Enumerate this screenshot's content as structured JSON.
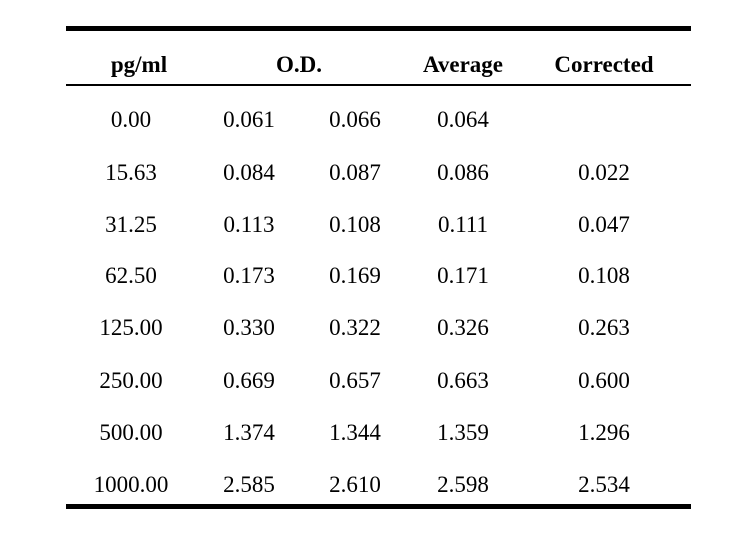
{
  "table": {
    "headers": {
      "pg_ml": "pg/ml",
      "od": "O.D.",
      "average": "Average",
      "corrected": "Corrected"
    },
    "rows": [
      {
        "pg_ml": "0.00",
        "od1": "0.061",
        "od2": "0.066",
        "average": "0.064",
        "corrected": ""
      },
      {
        "pg_ml": "15.63",
        "od1": "0.084",
        "od2": "0.087",
        "average": "0.086",
        "corrected": "0.022"
      },
      {
        "pg_ml": "31.25",
        "od1": "0.113",
        "od2": "0.108",
        "average": "0.111",
        "corrected": "0.047"
      },
      {
        "pg_ml": "62.50",
        "od1": "0.173",
        "od2": "0.169",
        "average": "0.171",
        "corrected": "0.108"
      },
      {
        "pg_ml": "125.00",
        "od1": "0.330",
        "od2": "0.322",
        "average": "0.326",
        "corrected": "0.263"
      },
      {
        "pg_ml": "250.00",
        "od1": "0.669",
        "od2": "0.657",
        "average": "0.663",
        "corrected": "0.600"
      },
      {
        "pg_ml": "500.00",
        "od1": "1.374",
        "od2": "1.344",
        "average": "1.359",
        "corrected": "1.296"
      },
      {
        "pg_ml": "1000.00",
        "od1": "2.585",
        "od2": "2.610",
        "average": "2.598",
        "corrected": "2.534"
      }
    ]
  }
}
